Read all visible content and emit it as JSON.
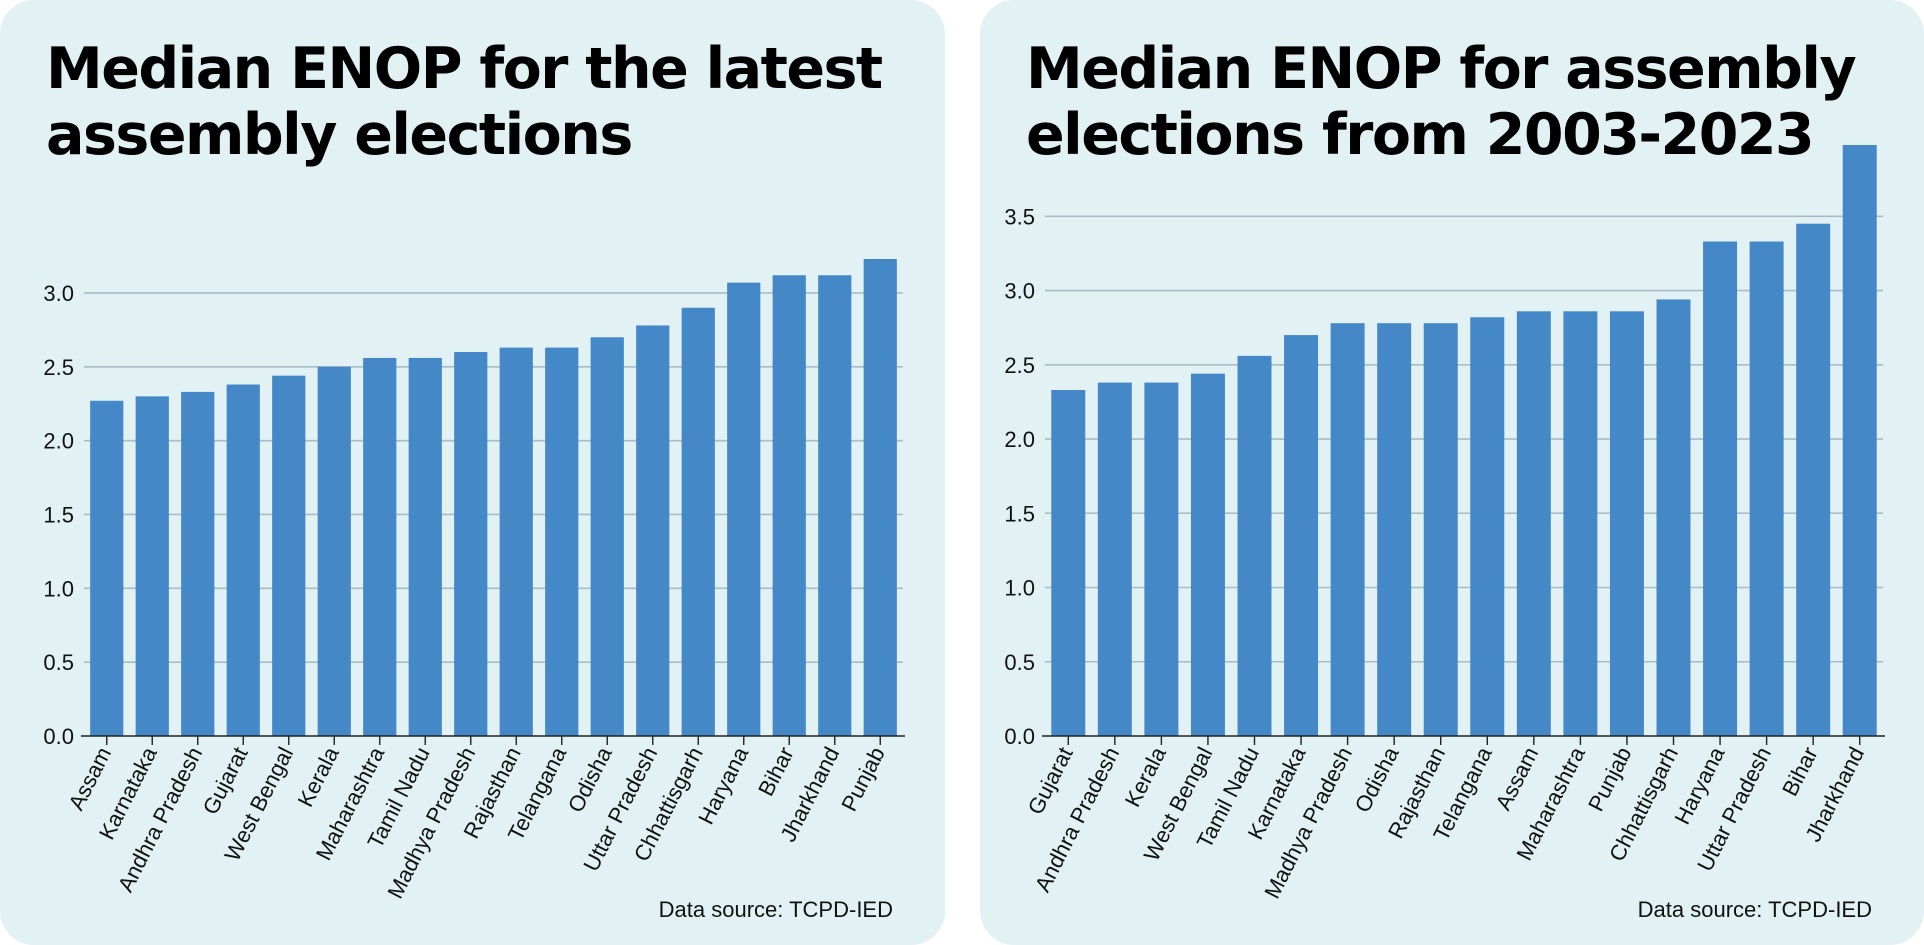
{
  "colors": {
    "panel_background": "#e1f1f4",
    "bar": "#4588c8",
    "gridline": "#a8bcc4",
    "axis": "#222222",
    "text": "#000000"
  },
  "chart_data": [
    {
      "type": "bar",
      "title": "Median ENOP for the latest assembly elections",
      "xlabel": "",
      "ylabel": "",
      "source": "Data source: TCPD-IED",
      "categories": [
        "Assam",
        "Karnataka",
        "Andhra Pradesh",
        "Gujarat",
        "West Bengal",
        "Kerala",
        "Maharashtra",
        "Tamil Nadu",
        "Madhya Pradesh",
        "Rajasthan",
        "Telangana",
        "Odisha",
        "Uttar Pradesh",
        "Chhattisgarh",
        "Haryana",
        "Bihar",
        "Jharkhand",
        "Punjab"
      ],
      "values": [
        2.27,
        2.3,
        2.33,
        2.38,
        2.44,
        2.5,
        2.56,
        2.56,
        2.6,
        2.63,
        2.63,
        2.7,
        2.78,
        2.9,
        3.07,
        3.12,
        3.12,
        3.23
      ],
      "ylim": [
        0,
        3.23
      ],
      "yticks": [
        "0.0",
        "0.5",
        "1.0",
        "1.5",
        "2.0",
        "2.5",
        "3.0"
      ],
      "grid": true,
      "legend": "none"
    },
    {
      "type": "bar",
      "title": "Median ENOP for assembly elections from 2003-2023",
      "xlabel": "",
      "ylabel": "",
      "source": "Data source: TCPD-IED",
      "categories": [
        "Gujarat",
        "Andhra Pradesh",
        "Kerala",
        "West Bengal",
        "Tamil Nadu",
        "Karnataka",
        "Madhya Pradesh",
        "Odisha",
        "Rajasthan",
        "Telangana",
        "Assam",
        "Maharashtra",
        "Punjab",
        "Chhattisgarh",
        "Haryana",
        "Uttar Pradesh",
        "Bihar",
        "Jharkhand"
      ],
      "values": [
        2.33,
        2.38,
        2.38,
        2.44,
        2.56,
        2.7,
        2.78,
        2.78,
        2.78,
        2.82,
        2.86,
        2.86,
        2.86,
        2.94,
        3.33,
        3.33,
        3.45,
        3.98
      ],
      "ylim": [
        0,
        3.98
      ],
      "yticks": [
        "0.0",
        "0.5",
        "1.0",
        "1.5",
        "2.0",
        "2.5",
        "3.0",
        "3.5"
      ],
      "grid": true,
      "legend": "none"
    }
  ]
}
